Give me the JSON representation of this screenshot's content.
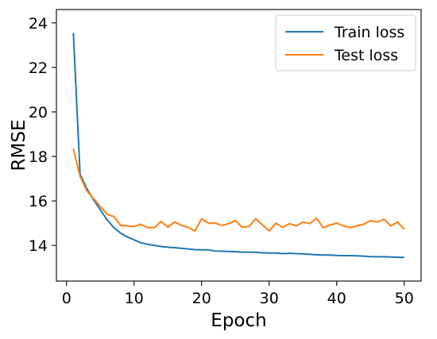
{
  "chart_data": {
    "type": "line",
    "title": "",
    "xlabel": "Epoch",
    "ylabel": "RMSE",
    "xlim": [
      -1.5,
      52.5
    ],
    "ylim": [
      12.4,
      24.6
    ],
    "xticks": [
      0,
      10,
      20,
      30,
      40,
      50
    ],
    "yticks": [
      14,
      16,
      18,
      20,
      22,
      24
    ],
    "grid": false,
    "legend_position": "top-right",
    "series": [
      {
        "name": "Train loss",
        "color": "#1f77b4",
        "x": [
          1,
          2,
          3,
          4,
          5,
          6,
          7,
          8,
          9,
          10,
          11,
          12,
          13,
          14,
          15,
          16,
          17,
          18,
          19,
          20,
          21,
          22,
          23,
          24,
          25,
          26,
          27,
          28,
          29,
          30,
          31,
          32,
          33,
          34,
          35,
          36,
          37,
          38,
          39,
          40,
          41,
          42,
          43,
          44,
          45,
          46,
          47,
          48,
          49,
          50
        ],
        "values": [
          23.55,
          17.2,
          16.55,
          16.05,
          15.6,
          15.15,
          14.8,
          14.55,
          14.38,
          14.25,
          14.12,
          14.05,
          14.0,
          13.95,
          13.92,
          13.9,
          13.87,
          13.84,
          13.81,
          13.8,
          13.8,
          13.75,
          13.74,
          13.73,
          13.72,
          13.7,
          13.7,
          13.69,
          13.67,
          13.66,
          13.66,
          13.63,
          13.65,
          13.63,
          13.62,
          13.6,
          13.58,
          13.57,
          13.57,
          13.55,
          13.54,
          13.54,
          13.53,
          13.52,
          13.5,
          13.49,
          13.49,
          13.48,
          13.47,
          13.46
        ]
      },
      {
        "name": "Test loss",
        "color": "#ff7f0e",
        "x": [
          1,
          2,
          3,
          4,
          5,
          6,
          7,
          8,
          9,
          10,
          11,
          12,
          13,
          14,
          15,
          16,
          17,
          18,
          19,
          20,
          21,
          22,
          23,
          24,
          25,
          26,
          27,
          28,
          29,
          30,
          31,
          32,
          33,
          34,
          35,
          36,
          37,
          38,
          39,
          40,
          41,
          42,
          43,
          44,
          45,
          46,
          47,
          48,
          49,
          50
        ],
        "values": [
          18.35,
          17.1,
          16.45,
          16.1,
          15.75,
          15.4,
          15.3,
          14.9,
          14.88,
          14.85,
          14.95,
          14.8,
          14.8,
          15.08,
          14.82,
          15.05,
          14.9,
          14.82,
          14.65,
          15.2,
          15.0,
          15.0,
          14.9,
          14.98,
          15.12,
          14.82,
          14.85,
          15.2,
          14.92,
          14.65,
          15.0,
          14.82,
          14.98,
          14.88,
          15.05,
          14.98,
          15.22,
          14.8,
          14.92,
          15.0,
          14.88,
          14.8,
          14.88,
          14.95,
          15.12,
          15.05,
          15.18,
          14.88,
          15.05,
          14.72
        ]
      }
    ]
  }
}
